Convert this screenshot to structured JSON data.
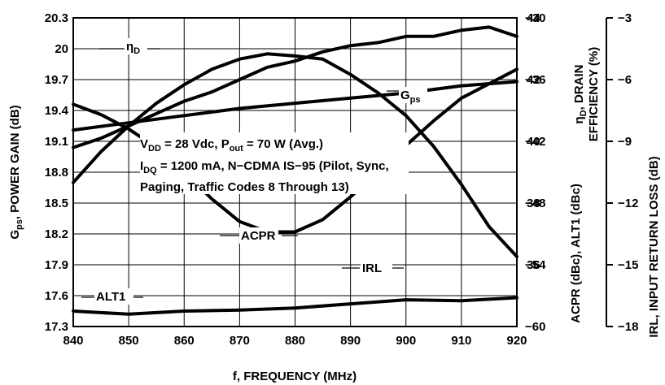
{
  "chart_data": {
    "type": "line",
    "xlabel": "f, FREQUENCY (MHz)",
    "x_ticks": [
      840,
      850,
      860,
      870,
      880,
      890,
      900,
      910,
      920
    ],
    "xlim": [
      840,
      920
    ],
    "grid": true,
    "axes": {
      "gain": {
        "label_main": "G",
        "label_sub": "ps",
        "label_rest": ", POWER GAIN (dB)",
        "ticks": [
          "17.3",
          "17.6",
          "17.9",
          "18.2",
          "18.5",
          "18.8",
          "19.1",
          "19.4",
          "19.7",
          "20",
          "20.3"
        ],
        "range": [
          17.3,
          20.3
        ]
      },
      "eff": {
        "label_line1_main": "η",
        "label_line1_sub": "D",
        "label_line1_rest": ", DRAIN",
        "label_line2": "EFFICIENCY (%)",
        "ticks": [
          "36",
          "38",
          "40",
          "42",
          "44"
        ],
        "range": [
          34,
          44
        ]
      },
      "acpr": {
        "label": "ACPR (dBc), ALT1 (dBc)",
        "ticks": [
          "−60",
          "−54",
          "−48",
          "−42",
          "−36",
          "−30"
        ],
        "range": [
          -60,
          -30
        ]
      },
      "irl": {
        "label": "IRL, INPUT RETURN LOSS (dB)",
        "ticks": [
          "−18",
          "−15",
          "−12",
          "−9",
          "−6",
          "−3"
        ],
        "range": [
          -18,
          -3
        ]
      }
    },
    "annotation": {
      "line1_a": "V",
      "line1_a_sub": "DD",
      "line1_b": " = 28 Vdc, P",
      "line1_b_sub": "out",
      "line1_c": " = 70 W (Avg.)",
      "line2_a": "I",
      "line2_a_sub": "DQ",
      "line2_b": " = 1200 mA, N−CDMA IS−95 (Pilot, Sync,",
      "line3": "Paging, Traffic Codes 8 Through 13)"
    },
    "series": [
      {
        "name_main": "η",
        "name_sub": "D",
        "axis": "eff",
        "x": [
          840,
          845,
          850,
          855,
          860,
          865,
          870,
          875,
          880,
          885,
          890,
          895,
          900,
          905,
          910,
          915,
          920
        ],
        "y": [
          39.8,
          40.1,
          40.5,
          40.9,
          41.3,
          41.6,
          42.0,
          42.4,
          42.6,
          42.9,
          43.1,
          43.2,
          43.4,
          43.4,
          43.6,
          43.7,
          43.4
        ]
      },
      {
        "name_main": "G",
        "name_sub": "ps",
        "axis": "gain",
        "x": [
          840,
          845,
          850,
          855,
          860,
          865,
          870,
          875,
          880,
          885,
          890,
          895,
          900,
          905,
          910,
          915,
          920
        ],
        "y": [
          18.7,
          19.0,
          19.25,
          19.47,
          19.65,
          19.8,
          19.9,
          19.95,
          19.93,
          19.9,
          19.75,
          19.57,
          19.35,
          19.05,
          18.68,
          18.27,
          17.98
        ]
      },
      {
        "name_main": "ACPR",
        "axis": "acpr",
        "x": [
          840,
          850,
          860,
          870,
          880,
          890,
          900,
          910,
          920
        ],
        "y": [
          -40.9,
          -40.2,
          -39.5,
          -38.8,
          -38.3,
          -37.8,
          -37.3,
          -36.6,
          -36.2
        ]
      },
      {
        "name_main": "IRL",
        "axis": "irl",
        "x": [
          840,
          845,
          850,
          855,
          860,
          865,
          870,
          875,
          880,
          885,
          890,
          895,
          900,
          905,
          910,
          915,
          920
        ],
        "y": [
          -7.2,
          -7.7,
          -8.4,
          -9.3,
          -10.5,
          -11.8,
          -12.9,
          -13.4,
          -13.4,
          -12.8,
          -11.7,
          -10.5,
          -9.2,
          -8.0,
          -6.9,
          -6.2,
          -5.5
        ]
      },
      {
        "name_main": "ALT1",
        "axis": "acpr",
        "x": [
          840,
          850,
          860,
          870,
          880,
          890,
          900,
          910,
          920
        ],
        "y": [
          -58.5,
          -58.8,
          -58.5,
          -58.4,
          -58.2,
          -57.8,
          -57.4,
          -57.5,
          -57.2
        ]
      }
    ]
  }
}
